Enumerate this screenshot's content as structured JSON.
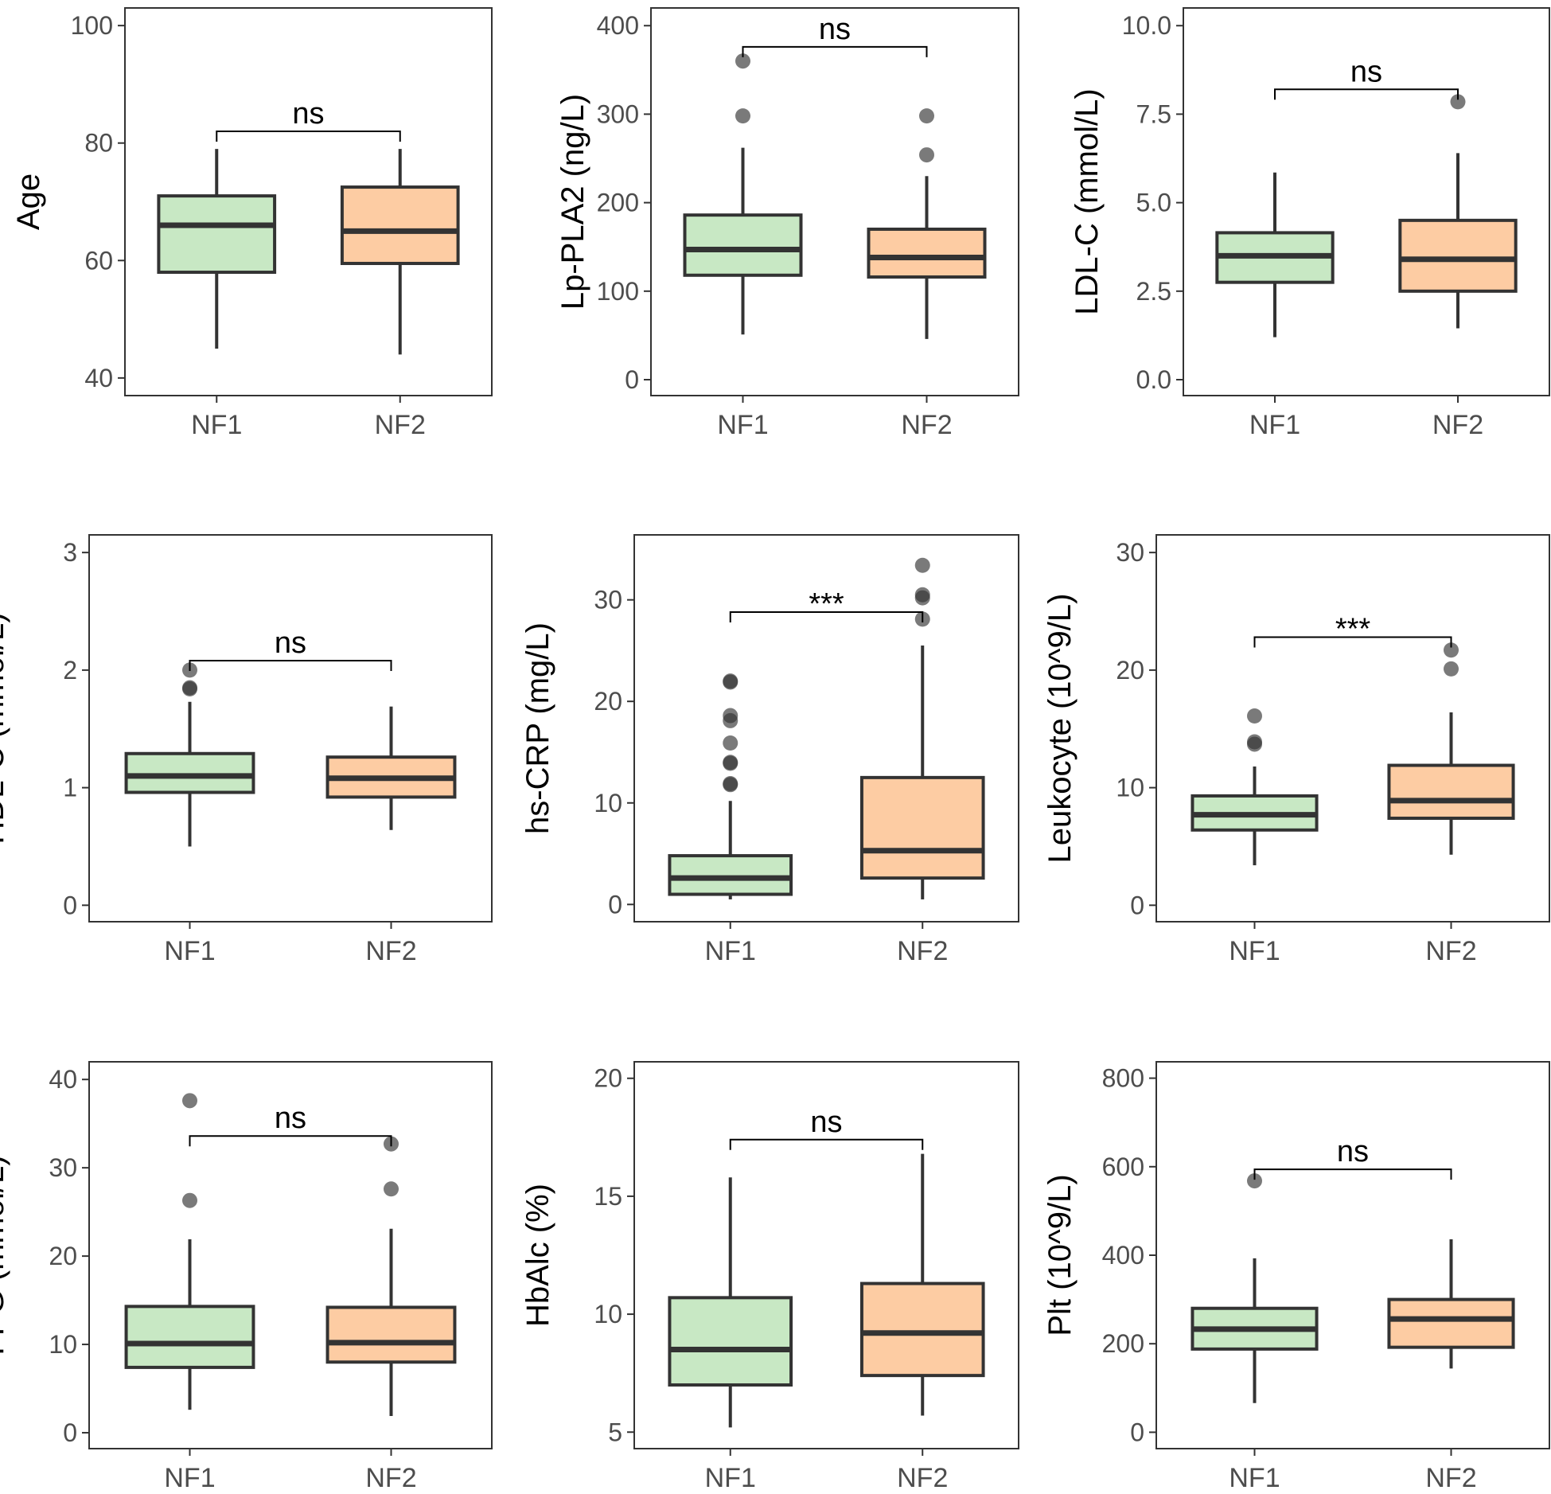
{
  "colors": {
    "NF1": "#c8e8c4",
    "NF2": "#fdcca3",
    "outline": "#333333"
  },
  "chart_data": [
    {
      "type": "box",
      "ylabel": "Age",
      "ylim": [
        37,
        103
      ],
      "ticks": [
        40,
        60,
        80,
        100
      ],
      "tick_labels": [
        "40",
        "60",
        "80",
        "100"
      ],
      "categories": [
        "NF1",
        "NF2"
      ],
      "boxes": [
        {
          "group": "NF1",
          "low": 45,
          "q1": 58,
          "median": 66,
          "q3": 71,
          "high": 79,
          "outliers": []
        },
        {
          "group": "NF2",
          "low": 44,
          "q1": 59.5,
          "median": 65,
          "q3": 72.5,
          "high": 79,
          "outliers": []
        }
      ],
      "significance": {
        "label": "ns",
        "level": 82
      }
    },
    {
      "type": "box",
      "ylabel": "Lp-PLA2 (ng/L)",
      "ylim": [
        -18,
        420
      ],
      "ticks": [
        0,
        100,
        200,
        300,
        400
      ],
      "tick_labels": [
        "0",
        "100",
        "200",
        "300",
        "400"
      ],
      "categories": [
        "NF1",
        "NF2"
      ],
      "boxes": [
        {
          "group": "NF1",
          "low": 51,
          "q1": 118,
          "median": 147,
          "q3": 186,
          "high": 262,
          "outliers": [
            298,
            360
          ]
        },
        {
          "group": "NF2",
          "low": 46,
          "q1": 116,
          "median": 138,
          "q3": 170,
          "high": 230,
          "outliers": [
            254,
            298
          ]
        }
      ],
      "significance": {
        "label": "ns",
        "level": 376
      }
    },
    {
      "type": "box",
      "ylabel": "LDL-C (mmol/L)",
      "ylim": [
        -0.45,
        10.5
      ],
      "ticks": [
        0,
        2.5,
        5,
        7.5,
        10
      ],
      "tick_labels": [
        "0.0",
        "2.5",
        "5.0",
        "7.5",
        "10.0"
      ],
      "categories": [
        "NF1",
        "NF2"
      ],
      "boxes": [
        {
          "group": "NF1",
          "low": 1.2,
          "q1": 2.75,
          "median": 3.5,
          "q3": 4.15,
          "high": 5.85,
          "outliers": []
        },
        {
          "group": "NF2",
          "low": 1.45,
          "q1": 2.5,
          "median": 3.4,
          "q3": 4.5,
          "high": 6.4,
          "outliers": [
            7.85
          ]
        }
      ],
      "significance": {
        "label": "ns",
        "level": 8.2
      }
    },
    {
      "type": "box",
      "ylabel": "HDL-C (mmol/L)",
      "ylim": [
        -0.14,
        3.15
      ],
      "ticks": [
        0,
        1,
        2,
        3
      ],
      "tick_labels": [
        "0",
        "1",
        "2",
        "3"
      ],
      "categories": [
        "NF1",
        "NF2"
      ],
      "boxes": [
        {
          "group": "NF1",
          "low": 0.5,
          "q1": 0.96,
          "median": 1.1,
          "q3": 1.29,
          "high": 1.73,
          "outliers": [
            1.84,
            1.85,
            2.0
          ]
        },
        {
          "group": "NF2",
          "low": 0.64,
          "q1": 0.92,
          "median": 1.08,
          "q3": 1.26,
          "high": 1.69,
          "outliers": []
        }
      ],
      "significance": {
        "label": "ns",
        "level": 2.08
      }
    },
    {
      "type": "box",
      "ylabel": "hs-CRP (mg/L)",
      "ylim": [
        -1.7,
        36.4
      ],
      "ticks": [
        0,
        10,
        20,
        30
      ],
      "tick_labels": [
        "0",
        "10",
        "20",
        "30"
      ],
      "categories": [
        "NF1",
        "NF2"
      ],
      "boxes": [
        {
          "group": "NF1",
          "low": 0.5,
          "q1": 1.0,
          "median": 2.6,
          "q3": 4.8,
          "high": 10.2,
          "outliers": [
            11.8,
            11.9,
            13.9,
            14.0,
            15.9,
            18.1,
            18.6,
            21.9,
            22.0
          ]
        },
        {
          "group": "NF2",
          "low": 0.5,
          "q1": 2.6,
          "median": 5.3,
          "q3": 12.5,
          "high": 25.5,
          "outliers": [
            28.1,
            30.2,
            30.5,
            33.4
          ]
        }
      ],
      "significance": {
        "label": "***",
        "level": 28.8
      }
    },
    {
      "type": "box",
      "ylabel": "Leukocyte (10^9/L)",
      "ylim": [
        -1.4,
        31.5
      ],
      "ticks": [
        0,
        10,
        20,
        30
      ],
      "tick_labels": [
        "0",
        "10",
        "20",
        "30"
      ],
      "categories": [
        "NF1",
        "NF2"
      ],
      "boxes": [
        {
          "group": "NF1",
          "low": 3.4,
          "q1": 6.4,
          "median": 7.7,
          "q3": 9.3,
          "high": 11.8,
          "outliers": [
            13.7,
            13.9,
            16.1
          ]
        },
        {
          "group": "NF2",
          "low": 4.3,
          "q1": 7.4,
          "median": 8.9,
          "q3": 11.9,
          "high": 16.4,
          "outliers": [
            20.1,
            21.7
          ]
        }
      ],
      "significance": {
        "label": "***",
        "level": 22.8
      }
    },
    {
      "type": "box",
      "ylabel": "FPG (mmol/L)",
      "ylim": [
        -1.8,
        42
      ],
      "ticks": [
        0,
        10,
        20,
        30,
        40
      ],
      "tick_labels": [
        "0",
        "10",
        "20",
        "30",
        "40"
      ],
      "categories": [
        "NF1",
        "NF2"
      ],
      "boxes": [
        {
          "group": "NF1",
          "low": 2.6,
          "q1": 7.4,
          "median": 10.1,
          "q3": 14.3,
          "high": 21.9,
          "outliers": [
            26.3,
            37.6
          ]
        },
        {
          "group": "NF2",
          "low": 1.9,
          "q1": 8.0,
          "median": 10.2,
          "q3": 14.2,
          "high": 23.1,
          "outliers": [
            27.6,
            32.7
          ]
        }
      ],
      "significance": {
        "label": "ns",
        "level": 33.6
      }
    },
    {
      "type": "box",
      "ylabel": "HbAlc (%)",
      "ylim": [
        4.3,
        20.7
      ],
      "ticks": [
        5,
        10,
        15,
        20
      ],
      "tick_labels": [
        "5",
        "10",
        "15",
        "20"
      ],
      "categories": [
        "NF1",
        "NF2"
      ],
      "boxes": [
        {
          "group": "NF1",
          "low": 5.2,
          "q1": 7.0,
          "median": 8.5,
          "q3": 10.7,
          "high": 15.8,
          "outliers": []
        },
        {
          "group": "NF2",
          "low": 5.7,
          "q1": 7.4,
          "median": 9.2,
          "q3": 11.3,
          "high": 16.8,
          "outliers": []
        }
      ],
      "significance": {
        "label": "ns",
        "level": 17.4
      }
    },
    {
      "type": "box",
      "ylabel": "Plt (10^9/L)",
      "ylim": [
        -37,
        837
      ],
      "ticks": [
        0,
        200,
        400,
        600,
        800
      ],
      "tick_labels": [
        "0",
        "200",
        "400",
        "600",
        "800"
      ],
      "categories": [
        "NF1",
        "NF2"
      ],
      "boxes": [
        {
          "group": "NF1",
          "low": 66,
          "q1": 188,
          "median": 233,
          "q3": 280,
          "high": 393,
          "outliers": [
            568
          ]
        },
        {
          "group": "NF2",
          "low": 144,
          "q1": 192,
          "median": 256,
          "q3": 300,
          "high": 436,
          "outliers": []
        }
      ],
      "significance": {
        "label": "ns",
        "level": 594
      }
    }
  ]
}
